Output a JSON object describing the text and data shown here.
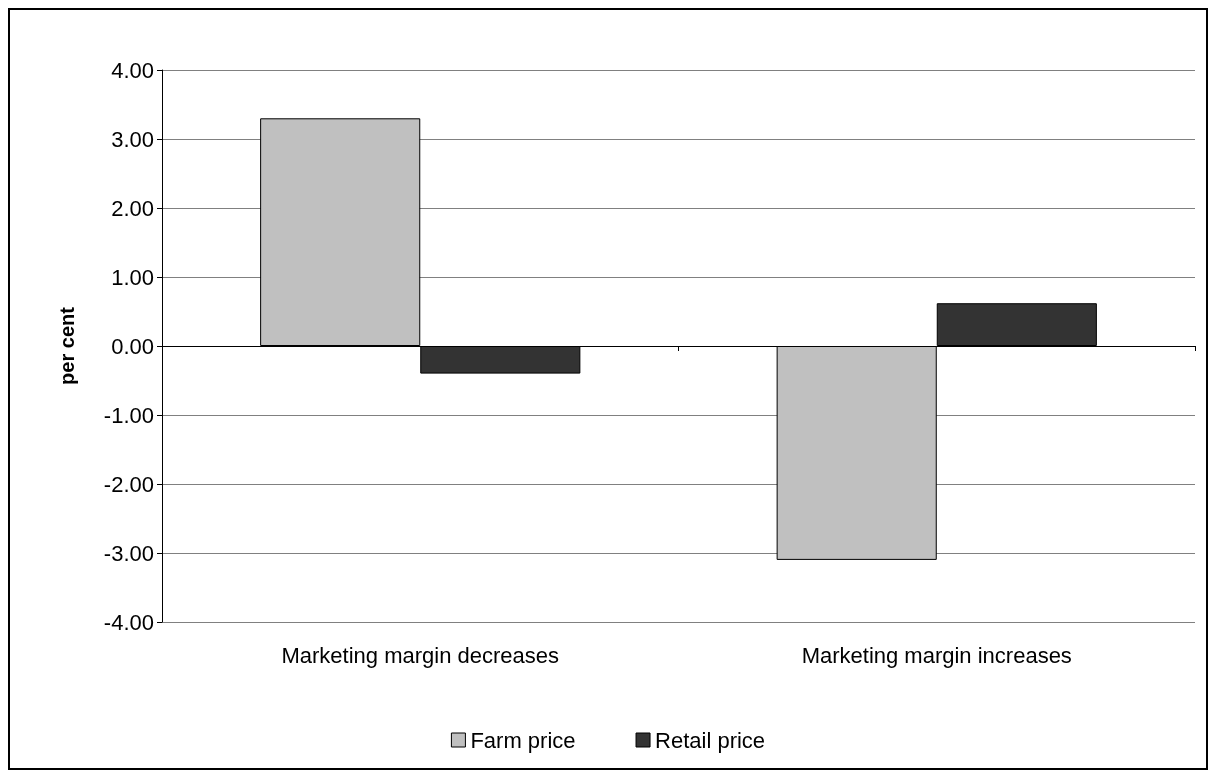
{
  "chart_data": {
    "type": "bar",
    "ylabel": "per cent",
    "categories": [
      "Marketing margin decreases",
      "Marketing margin increases"
    ],
    "series": [
      {
        "name": "Farm price",
        "color": "#c0c0c0",
        "values": [
          3.3,
          -3.1
        ]
      },
      {
        "name": "Retail price",
        "color": "#333333",
        "values": [
          -0.4,
          0.62
        ]
      }
    ],
    "ylim": [
      -4,
      4
    ],
    "yticks": [
      {
        "value": -4,
        "label": "-4.00"
      },
      {
        "value": -3,
        "label": "-3.00"
      },
      {
        "value": -2,
        "label": "-2.00"
      },
      {
        "value": -1,
        "label": "-1.00"
      },
      {
        "value": 0,
        "label": "0.00"
      },
      {
        "value": 1,
        "label": "1.00"
      },
      {
        "value": 2,
        "label": "2.00"
      },
      {
        "value": 3,
        "label": "3.00"
      },
      {
        "value": 4,
        "label": "4.00"
      }
    ],
    "grid": "y",
    "legend": "bottom"
  }
}
